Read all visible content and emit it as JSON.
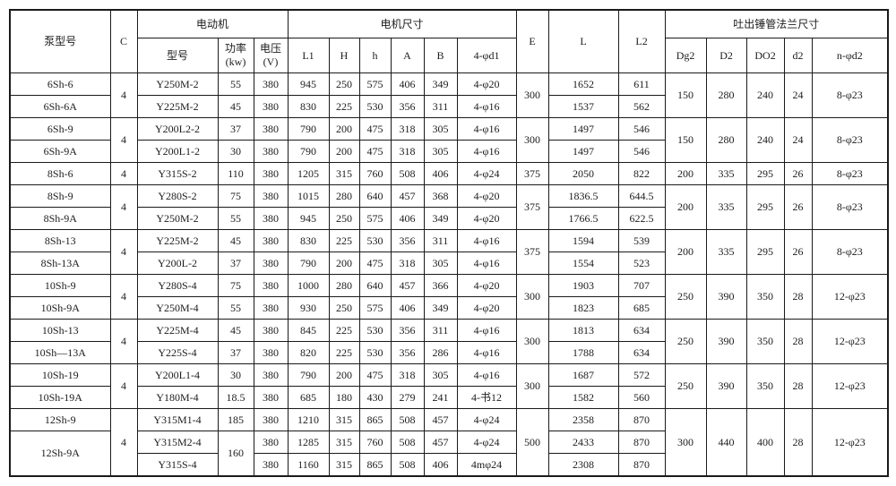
{
  "table": {
    "header": {
      "pump_model": "泵型号",
      "c": "C",
      "motor_group": "电动机",
      "motor_model": "型号",
      "power": "功率\n(kw)",
      "voltage": "电压\n(V)",
      "motor_dims_group": "电机尺寸",
      "l1": "L1",
      "h_cap": "H",
      "h_low": "h",
      "a": "A",
      "b": "B",
      "bolt1": "4-φd1",
      "e": "E",
      "l": "L",
      "l2": "L2",
      "flange_group": "吐出锤管法兰尺寸",
      "dg2": "Dg2",
      "d2_cap": "D2",
      "do2": "DO2",
      "d2_low": "d2",
      "bolt2": "n-φd2"
    },
    "rows": [
      [
        {
          "v": "6Sh-6"
        },
        {
          "v": "4",
          "rs": 2
        },
        {
          "v": "Y250M-2"
        },
        {
          "v": "55"
        },
        {
          "v": "380"
        },
        {
          "v": "945"
        },
        {
          "v": "250"
        },
        {
          "v": "575"
        },
        {
          "v": "406"
        },
        {
          "v": "349"
        },
        {
          "v": "4-φ20"
        },
        {
          "v": "300",
          "rs": 2
        },
        {
          "v": "1652"
        },
        {
          "v": "611"
        },
        {
          "v": "150",
          "rs": 2
        },
        {
          "v": "280",
          "rs": 2
        },
        {
          "v": "240",
          "rs": 2
        },
        {
          "v": "24",
          "rs": 2
        },
        {
          "v": "8-φ23",
          "rs": 2
        }
      ],
      [
        {
          "v": "6Sh-6A"
        },
        {
          "v": "Y225M-2"
        },
        {
          "v": "45"
        },
        {
          "v": "380"
        },
        {
          "v": "830"
        },
        {
          "v": "225"
        },
        {
          "v": "530"
        },
        {
          "v": "356"
        },
        {
          "v": "311"
        },
        {
          "v": "4-φ16"
        },
        {
          "v": "1537"
        },
        {
          "v": "562"
        }
      ],
      [
        {
          "v": "6Sh-9"
        },
        {
          "v": "4",
          "rs": 2
        },
        {
          "v": "Y200L2-2"
        },
        {
          "v": "37"
        },
        {
          "v": "380"
        },
        {
          "v": "790"
        },
        {
          "v": "200"
        },
        {
          "v": "475"
        },
        {
          "v": "318"
        },
        {
          "v": "305"
        },
        {
          "v": "4-φ16"
        },
        {
          "v": "300",
          "rs": 2
        },
        {
          "v": "1497"
        },
        {
          "v": "546"
        },
        {
          "v": "150",
          "rs": 2
        },
        {
          "v": "280",
          "rs": 2
        },
        {
          "v": "240",
          "rs": 2
        },
        {
          "v": "24",
          "rs": 2
        },
        {
          "v": "8-φ23",
          "rs": 2
        }
      ],
      [
        {
          "v": "6Sh-9A"
        },
        {
          "v": "Y200L1-2"
        },
        {
          "v": "30"
        },
        {
          "v": "380"
        },
        {
          "v": "790"
        },
        {
          "v": "200"
        },
        {
          "v": "475"
        },
        {
          "v": "318"
        },
        {
          "v": "305"
        },
        {
          "v": "4-φ16"
        },
        {
          "v": "1497"
        },
        {
          "v": "546"
        }
      ],
      [
        {
          "v": "8Sh-6"
        },
        {
          "v": "4"
        },
        {
          "v": "Y315S-2"
        },
        {
          "v": "110"
        },
        {
          "v": "380"
        },
        {
          "v": "1205"
        },
        {
          "v": "315"
        },
        {
          "v": "760"
        },
        {
          "v": "508"
        },
        {
          "v": "406"
        },
        {
          "v": "4-φ24"
        },
        {
          "v": "375"
        },
        {
          "v": "2050"
        },
        {
          "v": "822"
        },
        {
          "v": "200"
        },
        {
          "v": "335"
        },
        {
          "v": "295"
        },
        {
          "v": "26"
        },
        {
          "v": "8-φ23"
        }
      ],
      [
        {
          "v": "8Sh-9"
        },
        {
          "v": "4",
          "rs": 2
        },
        {
          "v": "Y280S-2"
        },
        {
          "v": "75"
        },
        {
          "v": "380"
        },
        {
          "v": "1015"
        },
        {
          "v": "280"
        },
        {
          "v": "640"
        },
        {
          "v": "457"
        },
        {
          "v": "368"
        },
        {
          "v": "4-φ20"
        },
        {
          "v": "375",
          "rs": 2
        },
        {
          "v": "1836.5"
        },
        {
          "v": "644.5"
        },
        {
          "v": "200",
          "rs": 2
        },
        {
          "v": "335",
          "rs": 2
        },
        {
          "v": "295",
          "rs": 2
        },
        {
          "v": "26",
          "rs": 2
        },
        {
          "v": "8-φ23",
          "rs": 2
        }
      ],
      [
        {
          "v": "8Sh-9A"
        },
        {
          "v": "Y250M-2"
        },
        {
          "v": "55"
        },
        {
          "v": "380"
        },
        {
          "v": "945"
        },
        {
          "v": "250"
        },
        {
          "v": "575"
        },
        {
          "v": "406"
        },
        {
          "v": "349"
        },
        {
          "v": "4-φ20"
        },
        {
          "v": "1766.5"
        },
        {
          "v": "622.5"
        }
      ],
      [
        {
          "v": "8Sh-13"
        },
        {
          "v": "4",
          "rs": 2
        },
        {
          "v": "Y225M-2"
        },
        {
          "v": "45"
        },
        {
          "v": "380"
        },
        {
          "v": "830"
        },
        {
          "v": "225"
        },
        {
          "v": "530"
        },
        {
          "v": "356"
        },
        {
          "v": "311"
        },
        {
          "v": "4-φ16"
        },
        {
          "v": "375",
          "rs": 2
        },
        {
          "v": "1594"
        },
        {
          "v": "539"
        },
        {
          "v": "200",
          "rs": 2
        },
        {
          "v": "335",
          "rs": 2
        },
        {
          "v": "295",
          "rs": 2
        },
        {
          "v": "26",
          "rs": 2
        },
        {
          "v": "8-φ23",
          "rs": 2
        }
      ],
      [
        {
          "v": "8Sh-13A"
        },
        {
          "v": "Y200L-2"
        },
        {
          "v": "37"
        },
        {
          "v": "380"
        },
        {
          "v": "790"
        },
        {
          "v": "200"
        },
        {
          "v": "475"
        },
        {
          "v": "318"
        },
        {
          "v": "305"
        },
        {
          "v": "4-φ16"
        },
        {
          "v": "1554"
        },
        {
          "v": "523"
        }
      ],
      [
        {
          "v": "10Sh-9"
        },
        {
          "v": "4",
          "rs": 2
        },
        {
          "v": "Y280S-4"
        },
        {
          "v": "75"
        },
        {
          "v": "380"
        },
        {
          "v": "1000"
        },
        {
          "v": "280"
        },
        {
          "v": "640"
        },
        {
          "v": "457"
        },
        {
          "v": "366"
        },
        {
          "v": "4-φ20"
        },
        {
          "v": "300",
          "rs": 2
        },
        {
          "v": "1903"
        },
        {
          "v": "707"
        },
        {
          "v": "250",
          "rs": 2
        },
        {
          "v": "390",
          "rs": 2
        },
        {
          "v": "350",
          "rs": 2
        },
        {
          "v": "28",
          "rs": 2
        },
        {
          "v": "12-φ23",
          "rs": 2
        }
      ],
      [
        {
          "v": "10Sh-9A"
        },
        {
          "v": "Y250M-4"
        },
        {
          "v": "55"
        },
        {
          "v": "380"
        },
        {
          "v": "930"
        },
        {
          "v": "250"
        },
        {
          "v": "575"
        },
        {
          "v": "406"
        },
        {
          "v": "349"
        },
        {
          "v": "4-φ20"
        },
        {
          "v": "1823"
        },
        {
          "v": "685"
        }
      ],
      [
        {
          "v": "10Sh-13"
        },
        {
          "v": "4",
          "rs": 2
        },
        {
          "v": "Y225M-4"
        },
        {
          "v": "45"
        },
        {
          "v": "380"
        },
        {
          "v": "845"
        },
        {
          "v": "225"
        },
        {
          "v": "530"
        },
        {
          "v": "356"
        },
        {
          "v": "311"
        },
        {
          "v": "4-φ16"
        },
        {
          "v": "300",
          "rs": 2
        },
        {
          "v": "1813"
        },
        {
          "v": "634"
        },
        {
          "v": "250",
          "rs": 2
        },
        {
          "v": "390",
          "rs": 2
        },
        {
          "v": "350",
          "rs": 2
        },
        {
          "v": "28",
          "rs": 2
        },
        {
          "v": "12-φ23",
          "rs": 2
        }
      ],
      [
        {
          "v": "10Sh—13A"
        },
        {
          "v": "Y225S-4"
        },
        {
          "v": "37"
        },
        {
          "v": "380"
        },
        {
          "v": "820"
        },
        {
          "v": "225"
        },
        {
          "v": "530"
        },
        {
          "v": "356"
        },
        {
          "v": "286"
        },
        {
          "v": "4-φ16"
        },
        {
          "v": "1788"
        },
        {
          "v": "634"
        }
      ],
      [
        {
          "v": "10Sh-19"
        },
        {
          "v": "4",
          "rs": 2
        },
        {
          "v": "Y200L1-4"
        },
        {
          "v": "30"
        },
        {
          "v": "380"
        },
        {
          "v": "790"
        },
        {
          "v": "200"
        },
        {
          "v": "475"
        },
        {
          "v": "318"
        },
        {
          "v": "305"
        },
        {
          "v": "4-φ16"
        },
        {
          "v": "300",
          "rs": 2
        },
        {
          "v": "1687"
        },
        {
          "v": "572"
        },
        {
          "v": "250",
          "rs": 2
        },
        {
          "v": "390",
          "rs": 2
        },
        {
          "v": "350",
          "rs": 2
        },
        {
          "v": "28",
          "rs": 2
        },
        {
          "v": "12-φ23",
          "rs": 2
        }
      ],
      [
        {
          "v": "10Sh-19A"
        },
        {
          "v": "Y180M-4"
        },
        {
          "v": "18.5"
        },
        {
          "v": "380"
        },
        {
          "v": "685"
        },
        {
          "v": "180"
        },
        {
          "v": "430"
        },
        {
          "v": "279"
        },
        {
          "v": "241"
        },
        {
          "v": "4-书12"
        },
        {
          "v": "1582"
        },
        {
          "v": "560"
        }
      ],
      [
        {
          "v": "12Sh-9"
        },
        {
          "v": "4",
          "rs": 3
        },
        {
          "v": "Y315M1-4"
        },
        {
          "v": "185"
        },
        {
          "v": "380"
        },
        {
          "v": "1210"
        },
        {
          "v": "315"
        },
        {
          "v": "865"
        },
        {
          "v": "508"
        },
        {
          "v": "457"
        },
        {
          "v": "4-φ24"
        },
        {
          "v": "500",
          "rs": 3
        },
        {
          "v": "2358"
        },
        {
          "v": "870"
        },
        {
          "v": "300",
          "rs": 3
        },
        {
          "v": "440",
          "rs": 3
        },
        {
          "v": "400",
          "rs": 3
        },
        {
          "v": "28",
          "rs": 3
        },
        {
          "v": "12-φ23",
          "rs": 3
        }
      ],
      [
        {
          "v": "12Sh-9A",
          "rs": 2
        },
        {
          "v": "Y315M2-4"
        },
        {
          "v": "160",
          "rs": 2
        },
        {
          "v": "380"
        },
        {
          "v": "1285"
        },
        {
          "v": "315"
        },
        {
          "v": "760"
        },
        {
          "v": "508"
        },
        {
          "v": "457"
        },
        {
          "v": "4-φ24"
        },
        {
          "v": "2433"
        },
        {
          "v": "870"
        }
      ],
      [
        {
          "v": "Y315S-4"
        },
        {
          "v": "380"
        },
        {
          "v": "1160"
        },
        {
          "v": "315"
        },
        {
          "v": "865"
        },
        {
          "v": "508"
        },
        {
          "v": "406"
        },
        {
          "v": "4mφ24"
        },
        {
          "v": "2308"
        },
        {
          "v": "870"
        }
      ]
    ]
  }
}
